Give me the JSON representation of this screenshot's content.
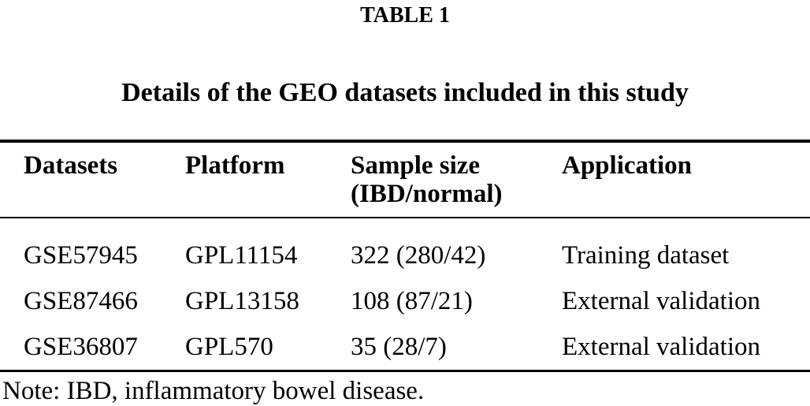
{
  "page": {
    "table_label": "TABLE 1",
    "caption": "Details of the GEO datasets included in this study",
    "note": "Note: IBD, inflammatory bowel disease."
  },
  "table": {
    "columns": [
      "Datasets",
      "Platform",
      "Sample size (IBD/normal)",
      "Application"
    ],
    "rows": [
      [
        "GSE57945",
        "GPL11154",
        "322 (280/42)",
        "Training dataset"
      ],
      [
        "GSE87466",
        "GPL13158",
        "108 (87/21)",
        "External validation"
      ],
      [
        "GSE36807",
        "GPL570",
        "35 (28/7)",
        "External validation"
      ]
    ]
  },
  "colors": {
    "background": "#ffffff",
    "text": "#000000",
    "rule": "#000000"
  }
}
